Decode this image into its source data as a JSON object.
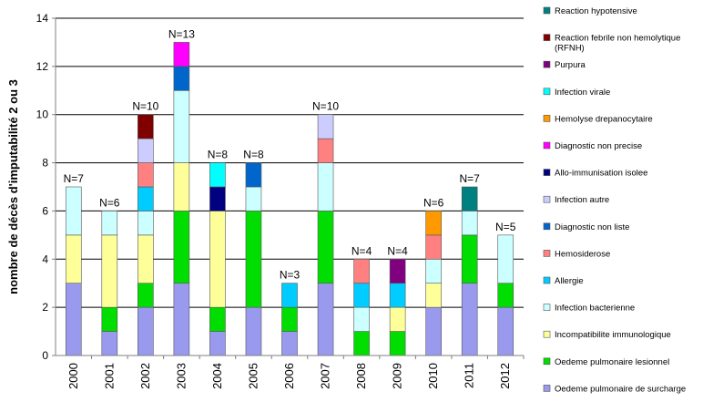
{
  "chart_data": {
    "type": "bar",
    "stacked": true,
    "ylabel": "nombre de décès d'imputabilité 2 ou 3",
    "xlabel": "",
    "ylim": [
      0,
      14
    ],
    "yticks": [
      0,
      2,
      4,
      6,
      8,
      10,
      12,
      14
    ],
    "grid": true,
    "legend_position": "right",
    "categories": [
      "2000",
      "2001",
      "2002",
      "2003",
      "2004",
      "2005",
      "2006",
      "2007",
      "2008",
      "2009",
      "2010",
      "2011",
      "2012"
    ],
    "totals_labels": [
      "N=7",
      "N=6",
      "N=10",
      "N=13",
      "N=8",
      "N=8",
      "N=3",
      "N=10",
      "N=4",
      "N=4",
      "N=6",
      "N=7",
      "N=5"
    ],
    "series": [
      {
        "name": "Oedeme pulmonaire de surcharge",
        "color": "#9999ee",
        "values": [
          3,
          1,
          2,
          3,
          1,
          2,
          1,
          3,
          0,
          0,
          2,
          3,
          2
        ]
      },
      {
        "name": "Oedeme pulmonaire lesionnel",
        "color": "#00dd00",
        "values": [
          0,
          1,
          1,
          3,
          1,
          4,
          1,
          3,
          1,
          1,
          0,
          2,
          1
        ]
      },
      {
        "name": "Incompatibilite immunologique",
        "color": "#ffff99",
        "values": [
          2,
          3,
          2,
          2,
          4,
          0,
          0,
          0,
          0,
          1,
          1,
          0,
          0
        ]
      },
      {
        "name": "Infection bacterienne",
        "color": "#ccffff",
        "values": [
          2,
          1,
          1,
          3,
          0,
          1,
          0,
          2,
          1,
          0,
          1,
          1,
          2
        ]
      },
      {
        "name": "Allergie",
        "color": "#00ccff",
        "values": [
          0,
          0,
          1,
          0,
          0,
          0,
          1,
          0,
          1,
          1,
          0,
          0,
          0
        ]
      },
      {
        "name": "Hemosiderose",
        "color": "#ff8080",
        "values": [
          0,
          0,
          1,
          0,
          0,
          0,
          0,
          1,
          1,
          0,
          1,
          0,
          0
        ]
      },
      {
        "name": "Diagnostic non liste",
        "color": "#0066cc",
        "values": [
          0,
          0,
          0,
          1,
          0,
          1,
          0,
          0,
          0,
          0,
          0,
          0,
          0
        ]
      },
      {
        "name": "Infection autre",
        "color": "#ccccff",
        "values": [
          0,
          0,
          1,
          0,
          0,
          0,
          0,
          1,
          0,
          0,
          0,
          0,
          0
        ]
      },
      {
        "name": "Allo-immunisation isolee",
        "color": "#000080",
        "values": [
          0,
          0,
          0,
          0,
          1,
          0,
          0,
          0,
          0,
          0,
          0,
          0,
          0
        ]
      },
      {
        "name": "Diagnostic non precise",
        "color": "#ff00ff",
        "values": [
          0,
          0,
          0,
          1,
          0,
          0,
          0,
          0,
          0,
          0,
          0,
          0,
          0
        ]
      },
      {
        "name": "Hemolyse drepanocytaire",
        "color": "#ff9900",
        "values": [
          0,
          0,
          0,
          0,
          0,
          0,
          0,
          0,
          0,
          0,
          1,
          0,
          0
        ]
      },
      {
        "name": "Infection virale",
        "color": "#00ffff",
        "values": [
          0,
          0,
          0,
          0,
          1,
          0,
          0,
          0,
          0,
          0,
          0,
          0,
          0
        ]
      },
      {
        "name": "Purpura",
        "color": "#800080",
        "values": [
          0,
          0,
          0,
          0,
          0,
          0,
          0,
          0,
          0,
          1,
          0,
          0,
          0
        ]
      },
      {
        "name": "Reaction febrile non hemolytique (RFNH)",
        "color": "#800000",
        "values": [
          0,
          0,
          1,
          0,
          0,
          0,
          0,
          0,
          0,
          0,
          0,
          0,
          0
        ]
      },
      {
        "name": "Reaction hypotensive",
        "color": "#008080",
        "values": [
          0,
          0,
          0,
          0,
          0,
          0,
          0,
          0,
          0,
          0,
          0,
          1,
          0
        ]
      }
    ]
  }
}
